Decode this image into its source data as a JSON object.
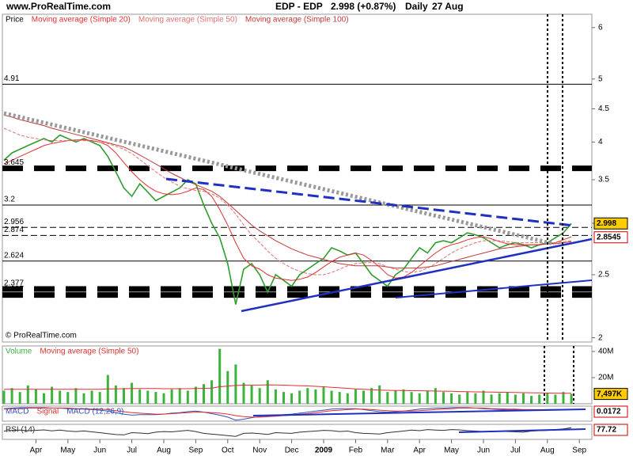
{
  "header": {
    "site": "www.ProRealTime.com",
    "title": "EDP - EDP",
    "quote": "2.998 (+0.87%)",
    "period": "Daily",
    "date": "27 Aug"
  },
  "chart_data": [
    {
      "type": "line",
      "log_scale": true,
      "watermark": "© ProRealTime.com",
      "categories": [
        null,
        null,
        null,
        null,
        "Apr",
        null,
        null,
        null,
        "May",
        null,
        null,
        null,
        "Jun",
        null,
        null,
        null,
        "Jul",
        null,
        null,
        null,
        "Aug",
        null,
        null,
        null,
        "Sep",
        null,
        null,
        null,
        "Oct",
        null,
        null,
        null,
        "Nov",
        null,
        null,
        null,
        "Dec",
        null,
        null,
        null,
        "2009",
        null,
        null,
        null,
        "Feb",
        null,
        null,
        null,
        "Mar",
        null,
        null,
        null,
        "Apr",
        null,
        null,
        null,
        "May",
        null,
        null,
        null,
        "Jun",
        null,
        null,
        null,
        "Jul",
        null,
        null,
        null,
        "Aug",
        null,
        null,
        null,
        "Sep"
      ],
      "ylim": [
        1.97,
        6.29
      ],
      "yticks": [
        2,
        2.5,
        3,
        3.5,
        4,
        4.5,
        5,
        6
      ],
      "series": [
        {
          "name": "Price",
          "color": "#2e9e2e",
          "values": [
            3.75,
            3.85,
            3.9,
            3.95,
            4.0,
            4.05,
            4.0,
            4.1,
            4.05,
            4.0,
            4.05,
            4.0,
            3.95,
            3.8,
            3.6,
            3.4,
            3.3,
            3.45,
            3.35,
            3.25,
            3.3,
            3.35,
            3.4,
            3.5,
            3.45,
            3.2,
            3.0,
            2.85,
            2.6,
            2.25,
            2.55,
            2.6,
            2.5,
            2.35,
            2.5,
            2.45,
            2.4,
            2.5,
            2.55,
            2.6,
            2.65,
            2.75,
            2.72,
            2.68,
            2.7,
            2.6,
            2.5,
            2.45,
            2.4,
            2.5,
            2.55,
            2.65,
            2.75,
            2.7,
            2.8,
            2.82,
            2.8,
            2.85,
            2.9,
            2.88,
            2.85,
            2.8,
            2.75,
            2.78,
            2.8,
            2.78,
            2.75,
            2.78,
            2.8,
            2.85,
            2.9,
            2.998,
            null
          ]
        },
        {
          "name": "Moving average (Simple 20)",
          "color": "#e03030",
          "values": [
            3.7,
            3.75,
            3.8,
            3.85,
            3.9,
            3.95,
            3.98,
            4.0,
            4.02,
            4.03,
            4.03,
            4.02,
            4.0,
            3.95,
            3.85,
            3.72,
            3.6,
            3.5,
            3.42,
            3.36,
            3.33,
            3.32,
            3.33,
            3.36,
            3.4,
            3.38,
            3.3,
            3.15,
            2.98,
            2.8,
            2.65,
            2.58,
            2.55,
            2.5,
            2.47,
            2.46,
            2.45,
            2.46,
            2.48,
            2.52,
            2.57,
            2.62,
            2.66,
            2.68,
            2.7,
            2.68,
            2.63,
            2.57,
            2.5,
            2.47,
            2.48,
            2.52,
            2.58,
            2.64,
            2.7,
            2.75,
            2.78,
            2.8,
            2.83,
            2.85,
            2.86,
            2.84,
            2.81,
            2.79,
            2.78,
            2.78,
            2.78,
            2.78,
            2.79,
            2.8,
            2.83,
            2.86,
            null
          ]
        },
        {
          "name": "Moving average (Simple 50)",
          "color": "#e07070",
          "values": [
            4.2,
            4.15,
            4.1,
            4.07,
            4.05,
            4.03,
            4.02,
            4.02,
            4.02,
            4.02,
            4.02,
            4.01,
            4.0,
            3.98,
            3.94,
            3.9,
            3.84,
            3.76,
            3.68,
            3.6,
            3.53,
            3.47,
            3.42,
            3.39,
            3.37,
            3.36,
            3.33,
            3.28,
            3.2,
            3.1,
            2.98,
            2.88,
            2.8,
            2.72,
            2.65,
            2.6,
            2.56,
            2.53,
            2.51,
            2.5,
            2.5,
            2.52,
            2.55,
            2.58,
            2.6,
            2.61,
            2.61,
            2.6,
            2.57,
            2.55,
            2.53,
            2.52,
            2.53,
            2.56,
            2.6,
            2.65,
            2.7,
            2.74,
            2.77,
            2.8,
            2.82,
            2.82,
            2.82,
            2.81,
            2.8,
            2.8,
            2.8,
            2.8,
            2.8,
            2.8,
            2.81,
            2.82,
            null
          ]
        },
        {
          "name": "Moving average (Simple 100)",
          "color": "#c03838",
          "values": [
            4.4,
            4.37,
            4.33,
            4.3,
            4.27,
            4.24,
            4.2,
            4.17,
            4.14,
            4.11,
            4.08,
            4.05,
            4.02,
            3.99,
            3.96,
            3.93,
            3.88,
            3.82,
            3.76,
            3.7,
            3.64,
            3.58,
            3.53,
            3.48,
            3.44,
            3.4,
            3.36,
            3.3,
            3.22,
            3.14,
            3.06,
            2.98,
            2.92,
            2.87,
            2.82,
            2.78,
            2.74,
            2.71,
            2.68,
            2.66,
            2.64,
            2.62,
            2.6,
            2.59,
            2.58,
            2.58,
            2.58,
            2.58,
            2.57,
            2.56,
            2.56,
            2.56,
            2.56,
            2.57,
            2.58,
            2.6,
            2.62,
            2.64,
            2.66,
            2.68,
            2.7,
            2.72,
            2.74,
            2.75,
            2.76,
            2.77,
            2.78,
            2.78,
            2.79,
            2.79,
            2.8,
            2.81,
            null
          ]
        }
      ],
      "levels": [
        {
          "value": 4.91,
          "style": "solid"
        },
        {
          "value": 3.645,
          "style": "thick"
        },
        {
          "value": 3.2,
          "style": "solid"
        },
        {
          "value": 2.956,
          "style": "dashed"
        },
        {
          "value": 2.874,
          "style": "dashed"
        },
        {
          "value": 2.624,
          "style": "solid"
        },
        {
          "value": 2.377,
          "style": "thick"
        },
        {
          "value": 2.327,
          "style": "thick"
        }
      ],
      "markers": [
        {
          "value": 2.998,
          "color": "#ffcc00"
        },
        {
          "value": 2.8545,
          "color": "#ffffff"
        }
      ]
    },
    {
      "type": "bar",
      "ylim": [
        0,
        44.2
      ],
      "yticks": [
        {
          "value": 20,
          "label": "20M"
        },
        {
          "value": 40,
          "label": "40M"
        }
      ],
      "series": [
        {
          "name": "Volume",
          "color": "#3cb33c",
          "values": [
            10,
            12,
            9,
            14,
            11,
            8,
            13,
            10,
            9,
            12,
            8,
            10,
            9,
            22,
            14,
            12,
            16,
            11,
            10,
            9,
            8,
            11,
            12,
            10,
            13,
            15,
            18,
            42,
            25,
            30,
            16,
            14,
            12,
            18,
            11,
            9,
            8,
            10,
            12,
            11,
            13,
            10,
            9,
            8,
            11,
            10,
            12,
            14,
            9,
            10,
            11,
            9,
            8,
            10,
            12,
            9,
            8,
            7,
            9,
            8,
            10,
            7,
            8,
            9,
            7,
            8,
            6,
            7,
            8,
            7,
            9,
            7.497,
            null
          ]
        },
        {
          "name": "Moving average (Simple 50)",
          "type": "line",
          "color": "#e03030",
          "values": [
            11,
            11,
            11,
            11,
            11,
            11,
            11,
            11,
            11,
            11,
            11,
            11,
            11,
            11.3,
            11.4,
            11.5,
            11.7,
            11.7,
            11.7,
            11.6,
            11.5,
            11.5,
            11.5,
            11.5,
            11.6,
            11.8,
            12,
            13,
            13.5,
            14,
            14.2,
            14.3,
            14.3,
            14.5,
            14.4,
            14.2,
            14,
            13.8,
            13.6,
            13.3,
            13,
            12.6,
            12.2,
            11.8,
            11.4,
            11,
            10.7,
            10.5,
            10.3,
            10.2,
            10.1,
            10,
            9.9,
            9.8,
            9.7,
            9.6,
            9.5,
            9.3,
            9.2,
            9.1,
            9,
            8.9,
            8.8,
            8.7,
            8.6,
            8.5,
            8.4,
            8.3,
            8.2,
            8.1,
            8,
            8,
            null
          ]
        }
      ],
      "markers": [
        {
          "value": 7.497,
          "label": "7,497K",
          "color": "#ffcc00"
        }
      ]
    },
    {
      "type": "line",
      "indicator": "MACD (12,26,9)",
      "ylim": [
        -0.22,
        0.08
      ],
      "series": [
        {
          "name": "MACD",
          "color": "#3050c0",
          "values": [
            0.03,
            0.04,
            0.05,
            0.05,
            0.05,
            0.05,
            0.04,
            0.04,
            0.03,
            0.02,
            0.02,
            0.01,
            0,
            -0.02,
            -0.05,
            -0.08,
            -0.1,
            -0.09,
            -0.09,
            -0.09,
            -0.08,
            -0.06,
            -0.05,
            -0.03,
            -0.02,
            -0.04,
            -0.07,
            -0.1,
            -0.14,
            -0.2,
            -0.18,
            -0.15,
            -0.13,
            -0.13,
            -0.11,
            -0.09,
            -0.08,
            -0.06,
            -0.04,
            -0.02,
            0,
            0.02,
            0.03,
            0.03,
            0.03,
            0.01,
            -0.01,
            -0.03,
            -0.04,
            -0.03,
            -0.02,
            0,
            0.02,
            0.03,
            0.04,
            0.04,
            0.05,
            0.05,
            0.05,
            0.04,
            0.03,
            0.02,
            0.01,
            0.01,
            0.01,
            0,
            0,
            0,
            0.01,
            0.01,
            0.01,
            0.0172,
            null
          ]
        },
        {
          "name": "Signal",
          "color": "#e03030",
          "values": [
            0.02,
            0.03,
            0.03,
            0.04,
            0.04,
            0.04,
            0.04,
            0.04,
            0.04,
            0.03,
            0.03,
            0.02,
            0.02,
            0.01,
            -0.01,
            -0.03,
            -0.05,
            -0.06,
            -0.07,
            -0.08,
            -0.08,
            -0.07,
            -0.06,
            -0.05,
            -0.04,
            -0.04,
            -0.05,
            -0.06,
            -0.08,
            -0.11,
            -0.13,
            -0.14,
            -0.14,
            -0.13,
            -0.12,
            -0.11,
            -0.1,
            -0.08,
            -0.07,
            -0.05,
            -0.03,
            -0.01,
            0,
            0.01,
            0.02,
            0.02,
            0.01,
            0,
            -0.01,
            -0.02,
            -0.02,
            -0.02,
            -0.01,
            0,
            0.01,
            0.02,
            0.03,
            0.04,
            0.04,
            0.04,
            0.04,
            0.03,
            0.03,
            0.02,
            0.02,
            0.01,
            0.01,
            0.01,
            0.01,
            0.01,
            0.01,
            0.01,
            null
          ]
        }
      ],
      "markers": [
        {
          "value": 0.0172,
          "color": "#ffffff"
        }
      ]
    },
    {
      "type": "line",
      "ylim": [
        0,
        100
      ],
      "series": [
        {
          "name": "RSI (14)",
          "color": "#303030",
          "values": [
            55,
            60,
            62,
            58,
            60,
            63,
            57,
            62,
            55,
            52,
            56,
            50,
            45,
            38,
            32,
            30,
            45,
            42,
            38,
            48,
            52,
            50,
            55,
            60,
            52,
            40,
            35,
            30,
            25,
            20,
            40,
            42,
            38,
            33,
            45,
            42,
            40,
            48,
            52,
            55,
            60,
            58,
            52,
            55,
            45,
            40,
            38,
            36,
            45,
            50,
            55,
            62,
            58,
            65,
            62,
            60,
            65,
            63,
            58,
            55,
            52,
            50,
            55,
            52,
            50,
            48,
            55,
            58,
            60,
            65,
            70,
            77.72,
            null
          ]
        }
      ],
      "markers": [
        {
          "value": 77.72,
          "color": "#ffffff"
        }
      ]
    }
  ]
}
